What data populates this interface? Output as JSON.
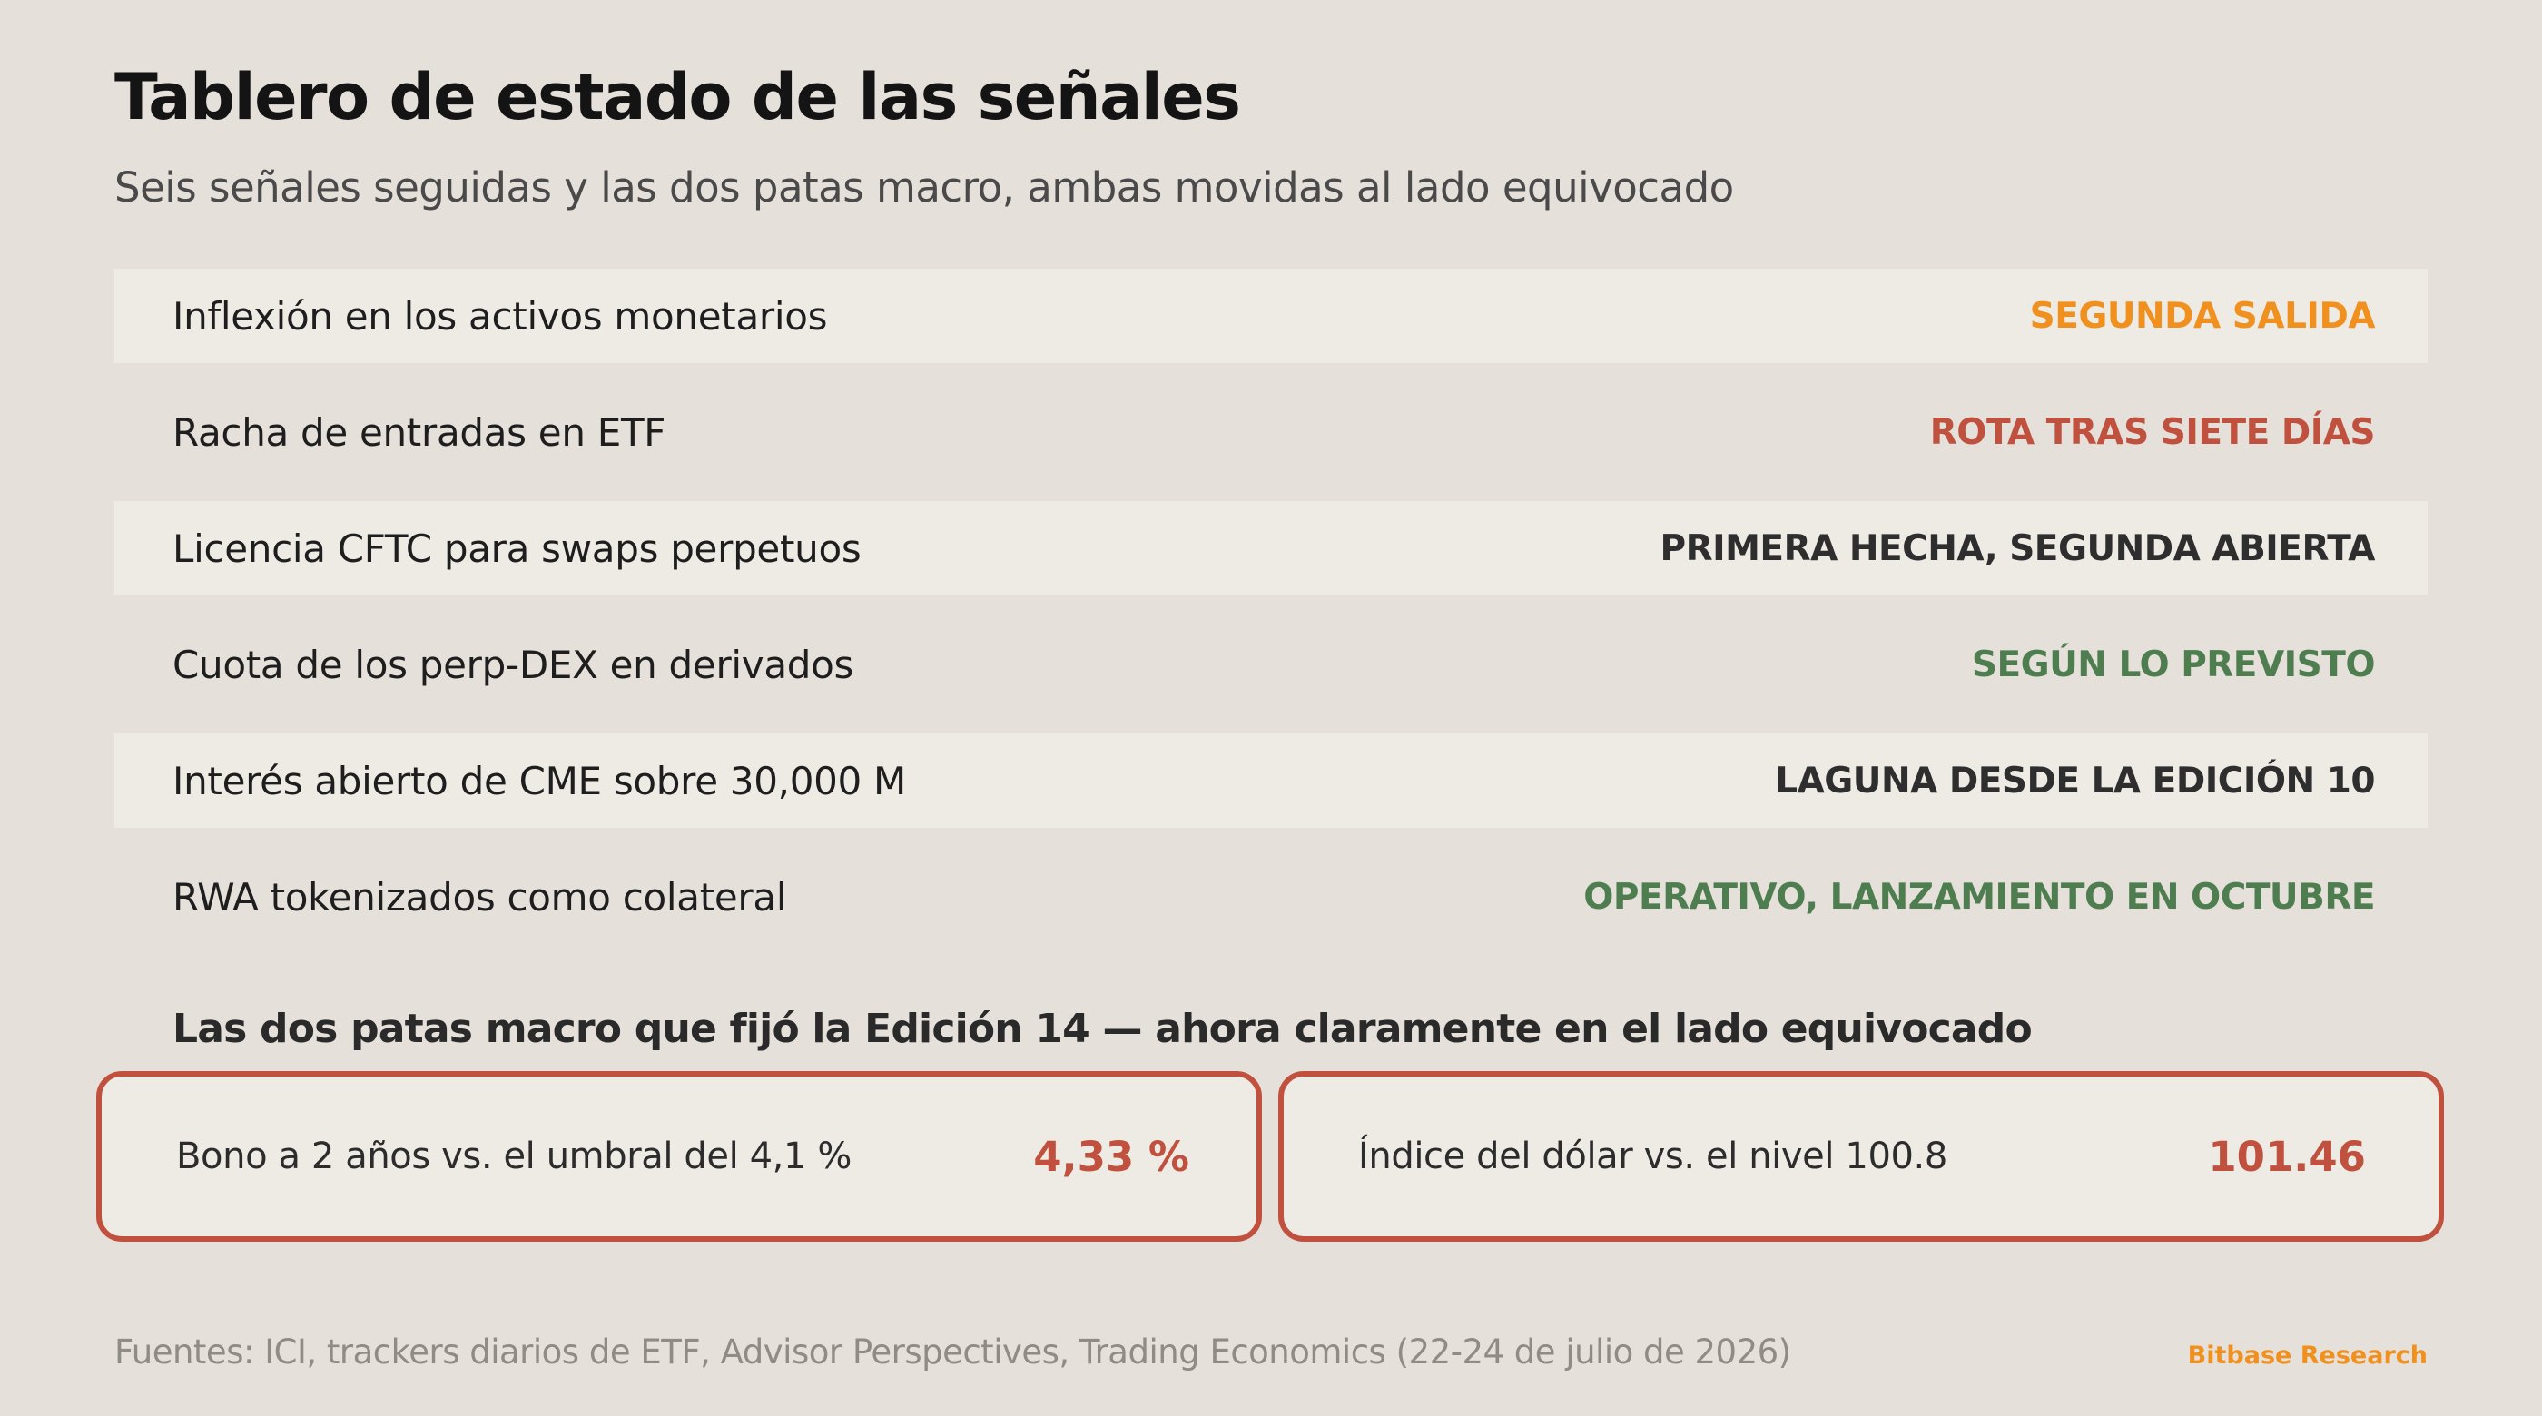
{
  "header": {
    "title": "Tablero de estado de las señales",
    "subtitle": "Seis señales seguidas y las dos patas macro, ambas movidas al lado equivocado"
  },
  "signals": [
    {
      "label": "Inflexión en los activos monetarios",
      "status": "SEGUNDA SALIDA",
      "status_color": "#f0901e"
    },
    {
      "label": "Racha de entradas en ETF",
      "status": "ROTA TRAS SIETE DÍAS",
      "status_color": "#c0513f"
    },
    {
      "label": "Licencia CFTC para swaps perpetuos",
      "status": "PRIMERA HECHA, SEGUNDA ABIERTA",
      "status_color": "#2e2e2e"
    },
    {
      "label": "Cuota de los perp-DEX en derivados",
      "status": "SEGÚN LO PREVISTO",
      "status_color": "#4e7d50"
    },
    {
      "label": "Interés abierto de CME sobre 30,000 M",
      "status": "LAGUNA DESDE LA EDICIÓN 10",
      "status_color": "#2e2e2e"
    },
    {
      "label": "RWA tokenizados como colateral",
      "status": "OPERATIVO, LANZAMIENTO EN OCTUBRE",
      "status_color": "#4e7d50"
    }
  ],
  "macro": {
    "heading": "Las dos patas macro que fijó la Edición 14 — ahora claramente en el lado equivocado",
    "accent_color": "#c0513f",
    "legs": [
      {
        "label": "Bono a 2 años vs. el umbral del 4,1 %",
        "value": "4,33 %"
      },
      {
        "label": "Índice del dólar vs. el nivel 100.8",
        "value": "101.46"
      }
    ]
  },
  "footer": {
    "sources": "Fuentes: ICI, trackers diarios de ETF, Advisor Perspectives, Trading Economics (22-24 de julio de 2026)",
    "brand": "Bitbase Research",
    "brand_color": "#f0901e"
  }
}
